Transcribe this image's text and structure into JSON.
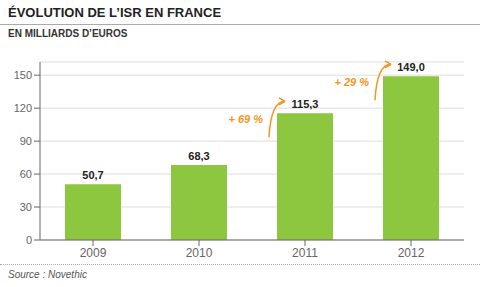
{
  "chart_data": {
    "type": "bar",
    "title": "ÉVOLUTION DE L’ISR EN FRANCE",
    "subtitle": "EN MILLIARDS D’EUROS",
    "source": "Source : Novethic",
    "categories": [
      "2009",
      "2010",
      "2011",
      "2012"
    ],
    "values": [
      50.7,
      68.3,
      115.3,
      149.0
    ],
    "value_labels": [
      "50,7",
      "68,3",
      "115,3",
      "149,0"
    ],
    "data_labels": true,
    "color": "#8dc63f",
    "ylim": [
      0,
      162
    ],
    "yticks": [
      0,
      30,
      60,
      90,
      120,
      150
    ],
    "grid": true,
    "annotations": [
      {
        "text": "+ 69 %",
        "color": "#f7941d"
      },
      {
        "text": "+ 29 %",
        "color": "#f7941d"
      }
    ]
  }
}
